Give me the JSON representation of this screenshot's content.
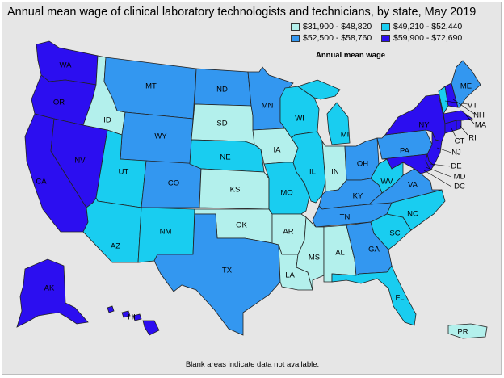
{
  "title": "Annual mean wage of clinical laboratory technologists and technicians, by state, May 2019",
  "legend": {
    "title": "Annual mean wage",
    "ranges": [
      {
        "label": "$31,900 - $48,820",
        "color": "#b3f0ec"
      },
      {
        "label": "$49,210 - $52,440",
        "color": "#19cdf0"
      },
      {
        "label": "$52,500 - $58,760",
        "color": "#3397f0"
      },
      {
        "label": "$59,900 - $72,690",
        "color": "#2c0ef0"
      }
    ]
  },
  "footnote": "Blank areas indicate data not available.",
  "chart_data": {
    "type": "choropleth",
    "title": "Annual mean wage of clinical laboratory technologists and technicians, by state, May 2019",
    "legend_title": "Annual mean wage",
    "legend_placement": "top-right",
    "bins": [
      "$31,900 - $48,820",
      "$49,210 - $52,440",
      "$52,500 - $58,760",
      "$59,900 - $72,690"
    ],
    "states": {
      "WA": 3,
      "OR": 3,
      "CA": 3,
      "NV": 3,
      "AK": 3,
      "HI": 3,
      "NY": 3,
      "NJ": 3,
      "CT": 3,
      "RI": 3,
      "MA": 3,
      "NH": 3,
      "DE": 3,
      "MD": 3,
      "DC": 3,
      "MT": 2,
      "WY": 2,
      "CO": 2,
      "ND": 2,
      "MN": 2,
      "TX": 2,
      "OH": 2,
      "PA": 2,
      "KY": 2,
      "TN": 2,
      "GA": 2,
      "ME": 2,
      "VA": 2,
      "UT": 1,
      "AZ": 1,
      "NM": 1,
      "NE": 1,
      "WI": 1,
      "MO": 1,
      "IL": 1,
      "MI": 1,
      "WV": 1,
      "NC": 1,
      "SC": 1,
      "FL": 1,
      "VT": 1,
      "ID": 0,
      "SD": 0,
      "KS": 0,
      "OK": 0,
      "IA": 0,
      "AR": 0,
      "LA": 0,
      "MS": 0,
      "AL": 0,
      "IN": 0,
      "PR": 0
    }
  }
}
